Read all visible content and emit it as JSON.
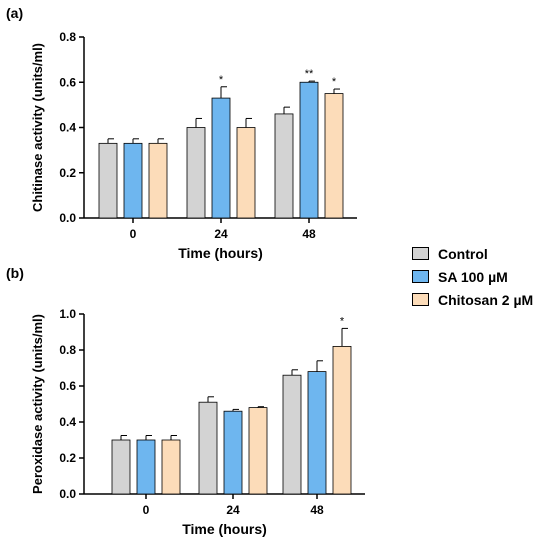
{
  "legend": {
    "items": [
      {
        "label": "Control",
        "color": "#d3d3d3"
      },
      {
        "label": "SA 100 µM",
        "color": "#6eb6ef"
      },
      {
        "label": "Chitosan 2 µM",
        "color": "#fcdcb9"
      }
    ]
  },
  "chart_data": [
    {
      "type": "bar",
      "panel_label": "(a)",
      "title": "",
      "xlabel": "Time (hours)",
      "ylabel": "Chitinase activity (units/ml)",
      "categories": [
        "0",
        "24",
        "48"
      ],
      "ylim": [
        0,
        0.8
      ],
      "yticks": [
        0.0,
        0.2,
        0.4,
        0.6,
        0.8
      ],
      "ytick_labels": [
        "0.0",
        "0.2",
        "0.4",
        "0.6",
        "0.8"
      ],
      "series": [
        {
          "name": "Control",
          "values": [
            0.33,
            0.4,
            0.46
          ],
          "errors": [
            0.02,
            0.04,
            0.03
          ]
        },
        {
          "name": "SA 100 µM",
          "values": [
            0.33,
            0.53,
            0.6
          ],
          "errors": [
            0.02,
            0.05,
            0.005
          ]
        },
        {
          "name": "Chitosan 2 µM",
          "values": [
            0.33,
            0.4,
            0.55
          ],
          "errors": [
            0.02,
            0.04,
            0.02
          ]
        }
      ],
      "significance": [
        [
          "",
          "",
          ""
        ],
        [
          "",
          "*",
          ""
        ],
        [
          "",
          "**",
          "*"
        ]
      ],
      "grid": false,
      "legend": "right"
    },
    {
      "type": "bar",
      "panel_label": "(b)",
      "title": "",
      "xlabel": "Time (hours)",
      "ylabel": "Peroxidase activity (units/ml)",
      "categories": [
        "0",
        "24",
        "48"
      ],
      "ylim": [
        0,
        1.0
      ],
      "yticks": [
        0.0,
        0.2,
        0.4,
        0.6,
        0.8,
        1.0
      ],
      "ytick_labels": [
        "0.0",
        "0.2",
        "0.4",
        "0.6",
        "0.8",
        "1.0"
      ],
      "series": [
        {
          "name": "Control",
          "values": [
            0.3,
            0.51,
            0.66
          ],
          "errors": [
            0.025,
            0.03,
            0.03
          ]
        },
        {
          "name": "SA 100 µM",
          "values": [
            0.3,
            0.46,
            0.68
          ],
          "errors": [
            0.025,
            0.01,
            0.06
          ]
        },
        {
          "name": "Chitosan 2 µM",
          "values": [
            0.3,
            0.48,
            0.82
          ],
          "errors": [
            0.025,
            0.005,
            0.1
          ]
        }
      ],
      "significance": [
        [
          "",
          "",
          ""
        ],
        [
          "",
          "",
          ""
        ],
        [
          "",
          "",
          "*"
        ]
      ],
      "grid": false,
      "legend": "right"
    }
  ]
}
